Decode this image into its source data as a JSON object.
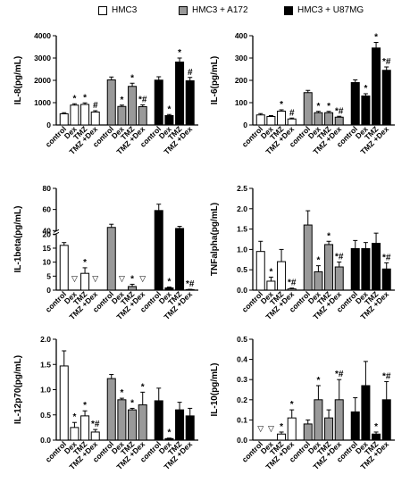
{
  "legend": [
    {
      "name": "HMC3",
      "color": "#ffffff"
    },
    {
      "name": "HMC3 + A172",
      "color": "#999999"
    },
    {
      "name": "HMC3 + U87MG",
      "color": "#000000"
    }
  ],
  "chart_data": [
    {
      "type": "bar",
      "ylabel": "IL-8(pg/mL)",
      "ylim": [
        0,
        4000
      ],
      "yticks": [
        "0",
        "1000",
        "2000",
        "3000",
        "4000"
      ],
      "categories": [
        "control",
        "Dex",
        "TMZ",
        "TMZ +Dex"
      ],
      "series": [
        {
          "name": "HMC3",
          "values": [
            500,
            890,
            920,
            580
          ],
          "errors": [
            50,
            60,
            70,
            60
          ],
          "marks": [
            "",
            "*",
            "*",
            "#"
          ]
        },
        {
          "name": "HMC3 + A172",
          "values": [
            2020,
            830,
            1730,
            820
          ],
          "errors": [
            130,
            60,
            140,
            80
          ],
          "marks": [
            "",
            "*",
            "*",
            "*#"
          ]
        },
        {
          "name": "HMC3 + U87MG",
          "values": [
            2010,
            420,
            2820,
            1980
          ],
          "errors": [
            150,
            50,
            180,
            150
          ],
          "marks": [
            "",
            "*",
            "*",
            "#"
          ]
        }
      ]
    },
    {
      "type": "bar",
      "ylabel": "IL-6(pg/mL)",
      "ylim": [
        0,
        400
      ],
      "yticks": [
        "0",
        "100",
        "200",
        "300",
        "400"
      ],
      "categories": [
        "control",
        "Dex",
        "TMZ",
        "TMZ +Dex"
      ],
      "series": [
        {
          "name": "HMC3",
          "values": [
            45,
            38,
            62,
            27
          ],
          "errors": [
            6,
            4,
            6,
            4
          ],
          "marks": [
            "",
            "",
            "*",
            "#"
          ]
        },
        {
          "name": "HMC3 + A172",
          "values": [
            145,
            55,
            55,
            35
          ],
          "errors": [
            10,
            6,
            6,
            4
          ],
          "marks": [
            "",
            "*",
            "*",
            "*#"
          ]
        },
        {
          "name": "HMC3 + U87MG",
          "values": [
            190,
            130,
            345,
            245
          ],
          "errors": [
            12,
            10,
            25,
            15
          ],
          "marks": [
            "",
            "*",
            "*",
            "*#"
          ]
        }
      ]
    },
    {
      "type": "bar",
      "ylabel": "IL-1beta(pg/mL)",
      "ylim": [
        0,
        80
      ],
      "ybreak": [
        20,
        40
      ],
      "yticks": [
        "0",
        "5",
        "10",
        "15",
        "20",
        "40",
        "60",
        "80"
      ],
      "categories": [
        "control",
        "Dex",
        "TMZ",
        "TMZ +Dex"
      ],
      "series": [
        {
          "name": "HMC3",
          "values": [
            16,
            null,
            6,
            null
          ],
          "errors": [
            1,
            0,
            2,
            0
          ],
          "marks": [
            "",
            "▽",
            "*",
            "▽"
          ]
        },
        {
          "name": "HMC3 + A172",
          "values": [
            43,
            null,
            1.3,
            null
          ],
          "errors": [
            3,
            0,
            0.8,
            0
          ],
          "marks": [
            "",
            "▽",
            "*",
            "▽"
          ]
        },
        {
          "name": "HMC3 + U87MG",
          "values": [
            59,
            0.8,
            42,
            0.2
          ],
          "errors": [
            6,
            0.3,
            2,
            0.1
          ],
          "marks": [
            "",
            "*",
            "",
            "*#"
          ]
        }
      ]
    },
    {
      "type": "bar",
      "ylabel": "TNFalpha(pg/mL)",
      "ylim": [
        0,
        2.5
      ],
      "yticks": [
        "0.0",
        "0.5",
        "1.0",
        "1.5",
        "2.0",
        "2.5"
      ],
      "categories": [
        "control",
        "Dex",
        "TMZ",
        "TMZ +Dex"
      ],
      "series": [
        {
          "name": "HMC3",
          "values": [
            0.95,
            0.22,
            0.7,
            0.03
          ],
          "errors": [
            0.25,
            0.1,
            0.3,
            0.02
          ],
          "marks": [
            "",
            "*",
            "",
            "*#"
          ]
        },
        {
          "name": "HMC3 + A172",
          "values": [
            1.6,
            0.45,
            1.12,
            0.57
          ],
          "errors": [
            0.35,
            0.15,
            0.08,
            0.12
          ],
          "marks": [
            "",
            "*",
            "*",
            "*#"
          ]
        },
        {
          "name": "HMC3 + U87MG",
          "values": [
            1.02,
            1.02,
            1.15,
            0.52
          ],
          "errors": [
            0.2,
            0.15,
            0.25,
            0.15
          ],
          "marks": [
            "",
            "",
            "",
            "*#"
          ]
        }
      ]
    },
    {
      "type": "bar",
      "ylabel": "IL-12p70(pg/mL)",
      "ylim": [
        0,
        2.0
      ],
      "yticks": [
        "0.0",
        "0.5",
        "1.0",
        "1.5",
        "2.0"
      ],
      "categories": [
        "control",
        "Dex",
        "TMZ",
        "TMZ +Dex"
      ],
      "series": [
        {
          "name": "HMC3",
          "values": [
            1.47,
            0.25,
            0.48,
            0.16
          ],
          "errors": [
            0.3,
            0.1,
            0.1,
            0.05
          ],
          "marks": [
            "",
            "*",
            "*",
            "*#"
          ]
        },
        {
          "name": "HMC3 + A172",
          "values": [
            1.22,
            0.8,
            0.6,
            0.7
          ],
          "errors": [
            0.08,
            0.03,
            0.03,
            0.25
          ],
          "marks": [
            "",
            "*",
            "*",
            "*"
          ]
        },
        {
          "name": "HMC3 + U87MG",
          "values": [
            0.78,
            0.03,
            0.6,
            0.48
          ],
          "errors": [
            0.25,
            0.01,
            0.15,
            0.15
          ],
          "marks": [
            "",
            "*",
            "",
            ""
          ]
        }
      ]
    },
    {
      "type": "bar",
      "ylabel": "IL-10(pg/mL)",
      "ylim": [
        0,
        0.5
      ],
      "yticks": [
        "0.0",
        "0.1",
        "0.2",
        "0.3",
        "0.4",
        "0.5"
      ],
      "categories": [
        "control",
        "Dex",
        "TMZ",
        "TMZ +Dex"
      ],
      "series": [
        {
          "name": "HMC3",
          "values": [
            null,
            null,
            0.03,
            0.11
          ],
          "errors": [
            0,
            0,
            0.01,
            0.04
          ],
          "marks": [
            "▽",
            "▽",
            "*",
            "*"
          ]
        },
        {
          "name": "HMC3 + A172",
          "values": [
            0.08,
            0.2,
            0.11,
            0.2
          ],
          "errors": [
            0.02,
            0.07,
            0.04,
            0.1
          ],
          "marks": [
            "",
            "*",
            "",
            "*#"
          ]
        },
        {
          "name": "HMC3 + U87MG",
          "values": [
            0.14,
            0.27,
            0.03,
            0.2
          ],
          "errors": [
            0.07,
            0.12,
            0.01,
            0.09
          ],
          "marks": [
            "",
            "",
            "*",
            "*#"
          ]
        }
      ]
    }
  ]
}
